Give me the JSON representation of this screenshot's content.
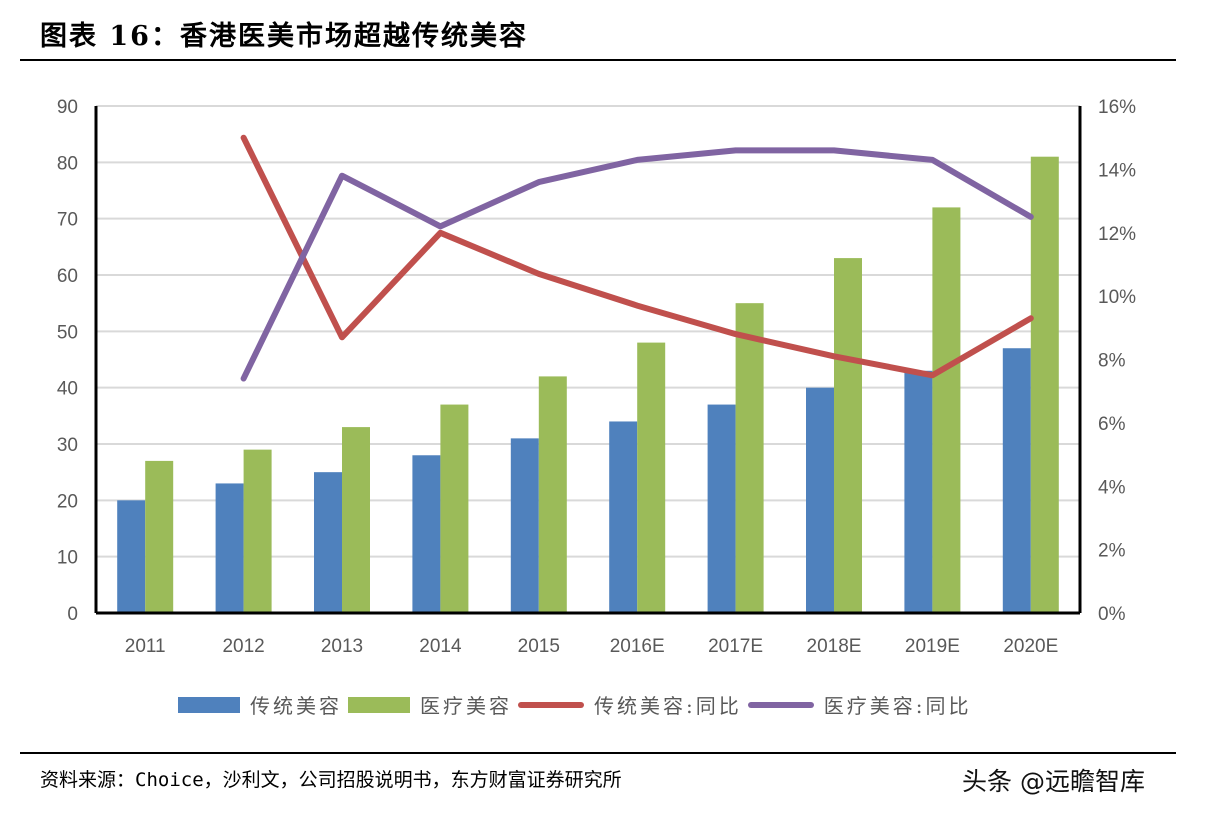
{
  "page": {
    "title": "图表 16：香港医美市场超越传统美容",
    "source": "资料来源：Choice，沙利文，公司招股说明书，东方财富证券研究所",
    "watermark": "头条 @远瞻智库"
  },
  "chart_data": {
    "type": "bar",
    "title": "香港医美市场超越传统美容",
    "categories": [
      "2011",
      "2012",
      "2013",
      "2014",
      "2015",
      "2016E",
      "2017E",
      "2018E",
      "2019E",
      "2020E"
    ],
    "series": [
      {
        "name": "传统美容",
        "kind": "bar",
        "axis": "left",
        "color": "#4F81BD",
        "values": [
          20,
          23,
          25,
          28,
          31,
          34,
          37,
          40,
          43,
          47
        ]
      },
      {
        "name": "医疗美容",
        "kind": "bar",
        "axis": "left",
        "color": "#9BBB59",
        "values": [
          27,
          29,
          33,
          37,
          42,
          48,
          55,
          63,
          72,
          81
        ]
      },
      {
        "name": "传统美容:同比",
        "kind": "line",
        "axis": "right",
        "color": "#C0504D",
        "unit": "%",
        "values": [
          null,
          15.0,
          8.7,
          12.0,
          10.7,
          9.7,
          8.8,
          8.1,
          7.5,
          9.3
        ]
      },
      {
        "name": "医疗美容:同比",
        "kind": "line",
        "axis": "right",
        "color": "#8064A2",
        "unit": "%",
        "values": [
          null,
          7.4,
          13.8,
          12.2,
          13.6,
          14.3,
          14.6,
          14.6,
          14.3,
          12.5
        ]
      }
    ],
    "y_left": {
      "min": 0,
      "max": 90,
      "step": 10,
      "tick_labels": [
        "0",
        "10",
        "20",
        "30",
        "40",
        "50",
        "60",
        "70",
        "80",
        "90"
      ]
    },
    "y_right": {
      "min": 0,
      "max": 16,
      "step": 2,
      "tick_labels": [
        "0%",
        "2%",
        "4%",
        "6%",
        "8%",
        "10%",
        "12%",
        "14%",
        "16%"
      ]
    },
    "xlabel": "",
    "ylabel": "",
    "grid": true,
    "legend_position": "bottom",
    "legend": [
      {
        "label": "传统美容",
        "type": "box",
        "color": "#4F81BD"
      },
      {
        "label": "医疗美容",
        "type": "box",
        "color": "#9BBB59"
      },
      {
        "label": "传统美容:同比",
        "type": "line",
        "color": "#C0504D"
      },
      {
        "label": "医疗美容:同比",
        "type": "line",
        "color": "#8064A2"
      }
    ]
  }
}
